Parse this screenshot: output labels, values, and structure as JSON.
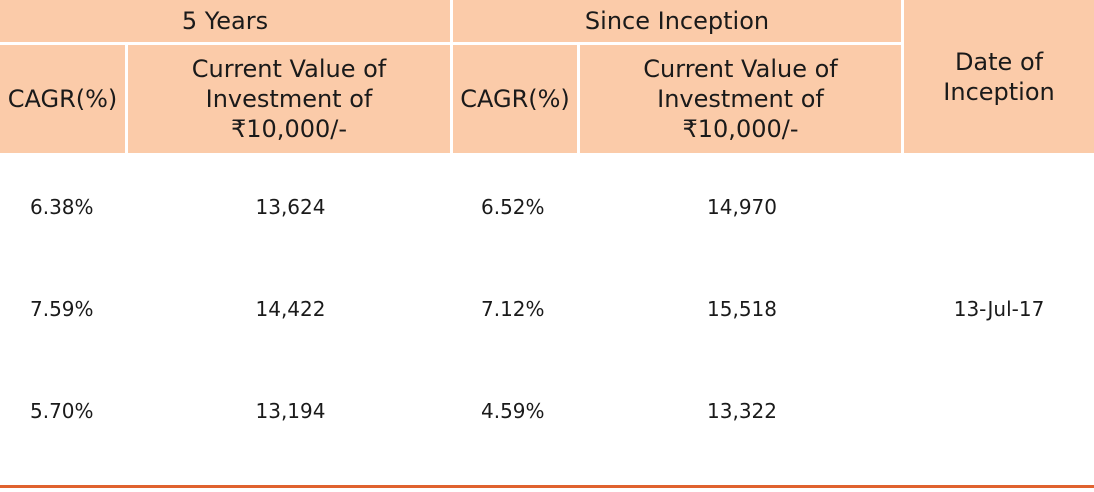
{
  "table": {
    "group_headers": {
      "five_years": "5 Years",
      "since_inception": "Since Inception",
      "date_of_inception": "Date of Inception"
    },
    "sub_headers": {
      "cagr_5y": "CAGR(%)",
      "value_5y": "Current Value of Investment of ₹10,000/-",
      "cagr_si": "CAGR(%)",
      "value_si": "Current Value of Investment of ₹10,000/-"
    },
    "rows": [
      {
        "cagr_5y": "6.38%",
        "value_5y": "13,624",
        "cagr_si": "6.52%",
        "value_si": "14,970"
      },
      {
        "cagr_5y": "7.59%",
        "value_5y": "14,422",
        "cagr_si": "7.12%",
        "value_si": "15,518"
      },
      {
        "cagr_5y": "5.70%",
        "value_5y": "13,194",
        "cagr_si": "4.59%",
        "value_si": "13,322"
      }
    ],
    "inception_date": "13-Jul-17"
  },
  "colors": {
    "header_background": "#fbcba9",
    "bottom_rule": "#e0622f"
  }
}
